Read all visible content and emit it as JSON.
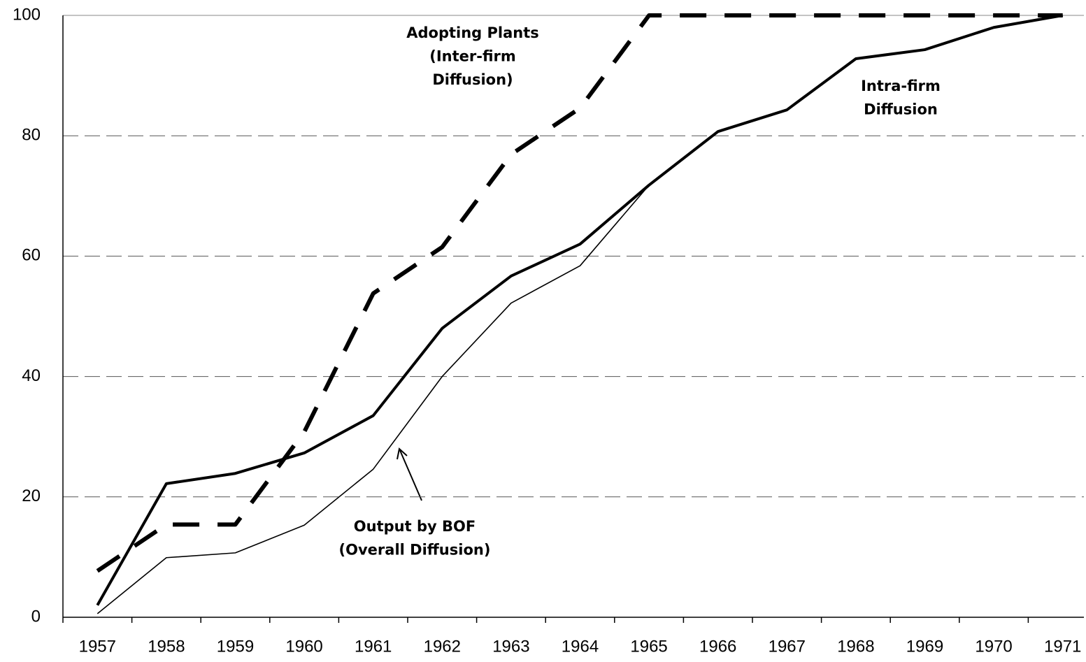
{
  "chart_data": {
    "type": "line",
    "categories": [
      "1957",
      "1958",
      "1959",
      "1960",
      "1961",
      "1962",
      "1963",
      "1964",
      "1965",
      "1966",
      "1967",
      "1968",
      "1969",
      "1970",
      "1971"
    ],
    "series": [
      {
        "name": [
          "Adopting Plants",
          "(Inter-firm",
          "Diffusion)"
        ],
        "color": "#000000",
        "style": "dashed",
        "values": [
          7.7,
          15.4,
          15.4,
          30.8,
          53.8,
          61.5,
          76.9,
          84.6,
          100,
          100,
          100,
          100,
          100,
          100,
          100
        ]
      },
      {
        "name": [
          "Intra-firm",
          "Diffusion"
        ],
        "color": "#000000",
        "style": "thick",
        "values": [
          2,
          22.2,
          23.9,
          27.3,
          33.5,
          48,
          56.7,
          62,
          71.8,
          80.7,
          84.3,
          92.8,
          94.3,
          98,
          100
        ]
      },
      {
        "name": [
          "Output by BOF",
          "(Overall Diffusion)"
        ],
        "color": "#000000",
        "style": "thin",
        "values": [
          0.6,
          9.9,
          10.7,
          15.3,
          24.6,
          40,
          52.2,
          58.4,
          71.8,
          80.7,
          84.3,
          92.8,
          94.3,
          98,
          100
        ]
      }
    ],
    "ylim": [
      0,
      100
    ],
    "yticks": [
      0,
      20,
      40,
      60,
      80,
      100
    ],
    "grid": true
  }
}
